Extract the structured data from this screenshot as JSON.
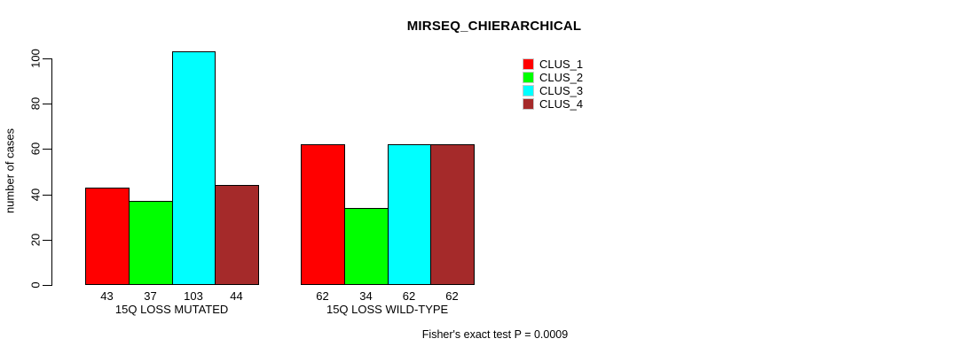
{
  "title": "MIRSEQ_CHIERARCHICAL",
  "annotation": "Fisher's exact test P = 0.0009",
  "chart_data": {
    "type": "bar",
    "title": "MIRSEQ_CHIERARCHICAL",
    "categories": [
      "15Q LOSS MUTATED",
      "15Q LOSS WILD-TYPE"
    ],
    "series": [
      {
        "name": "CLUS_1",
        "color": "#FF0000",
        "values": [
          43,
          62
        ]
      },
      {
        "name": "CLUS_2",
        "color": "#00FF00",
        "values": [
          37,
          34
        ]
      },
      {
        "name": "CLUS_3",
        "color": "#00FFFF",
        "values": [
          103,
          62
        ]
      },
      {
        "name": "CLUS_4",
        "color": "#A52A2A",
        "values": [
          44,
          62
        ]
      }
    ],
    "ylabel": "number of cases",
    "xlabel": "",
    "yticks": [
      0,
      20,
      40,
      60,
      80,
      100
    ],
    "ylim": [
      0,
      103
    ],
    "grid": false,
    "bar_value_labels": true,
    "legend_entries": [
      "CLUS_1",
      "CLUS_2",
      "CLUS_3",
      "CLUS_4"
    ],
    "legend_position": "top-right",
    "annotation": "Fisher's exact test P = 0.0009",
    "axis_color": "#000000",
    "bar_border_color": "#000000"
  }
}
